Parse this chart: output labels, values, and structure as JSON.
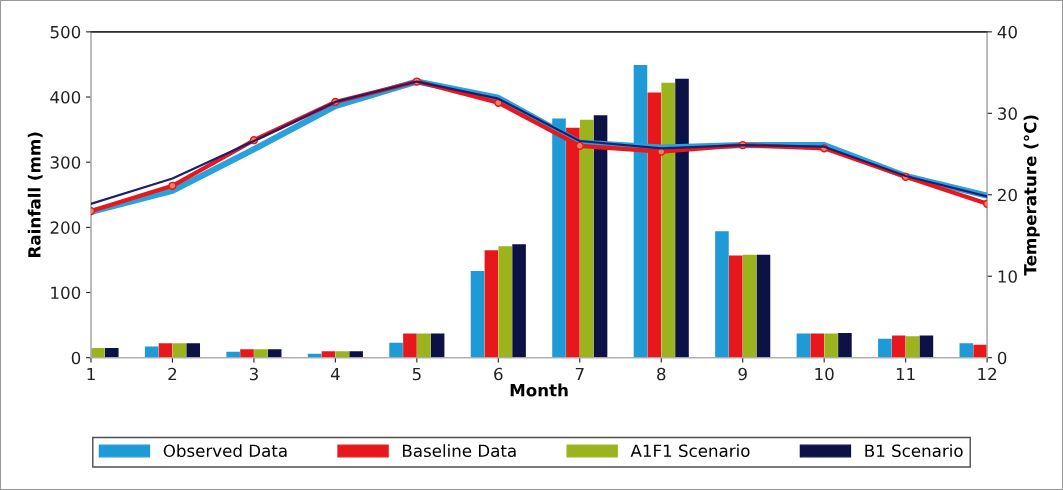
{
  "chart_data": {
    "type": "bar",
    "xlabel": "Month",
    "ylabel": "Rainfall (mm)",
    "y2label": "Temperature (°C)",
    "categories": [
      "1",
      "2",
      "3",
      "4",
      "5",
      "6",
      "7",
      "8",
      "9",
      "10",
      "11",
      "12"
    ],
    "ylim": [
      0,
      500
    ],
    "yticks": [
      0,
      100,
      200,
      300,
      400,
      500
    ],
    "y2lim": [
      0,
      40
    ],
    "y2ticks": [
      0,
      10,
      20,
      30,
      40
    ],
    "grid": false,
    "legend": "bottom",
    "series": [
      {
        "name": "Observed Data",
        "color": "#1e9ad6",
        "values": [
          null,
          17,
          9,
          6,
          23,
          133,
          367,
          449,
          194,
          37,
          29,
          22
        ]
      },
      {
        "name": "Baseline Data",
        "color": "#e8171b",
        "values": [
          null,
          22,
          13,
          10,
          37,
          165,
          353,
          407,
          157,
          37,
          34,
          20
        ]
      },
      {
        "name": "A1F1 Scenario",
        "color": "#9bb31c",
        "values": [
          15,
          22,
          13,
          10,
          37,
          171,
          365,
          422,
          158,
          37,
          33,
          null
        ]
      },
      {
        "name": "B1 Scenario",
        "color": "#0c1246",
        "values": [
          15,
          22,
          13,
          10,
          37,
          174,
          372,
          428,
          158,
          38,
          34,
          null
        ]
      },
      {
        "type": "line",
        "axis": "y2",
        "color": "#2aa0dc",
        "marker": "none",
        "values": [
          17.9,
          20.5,
          25.6,
          30.9,
          33.9,
          31.9,
          26.4,
          25.8,
          26.1,
          26.1,
          22.3,
          19.9
        ]
      },
      {
        "type": "line",
        "axis": "y2",
        "color": "#e8171b",
        "marker": "circle",
        "values": [
          18.0,
          21.1,
          26.7,
          31.4,
          33.9,
          31.3,
          26.0,
          25.3,
          26.1,
          25.7,
          22.2,
          18.9
        ]
      },
      {
        "type": "line",
        "axis": "y2",
        "color": "#1a1f6e",
        "marker": "none",
        "values": [
          18.9,
          22.0,
          26.6,
          31.4,
          33.9,
          31.8,
          26.6,
          25.7,
          26.1,
          25.9,
          22.3,
          19.8
        ]
      }
    ]
  }
}
